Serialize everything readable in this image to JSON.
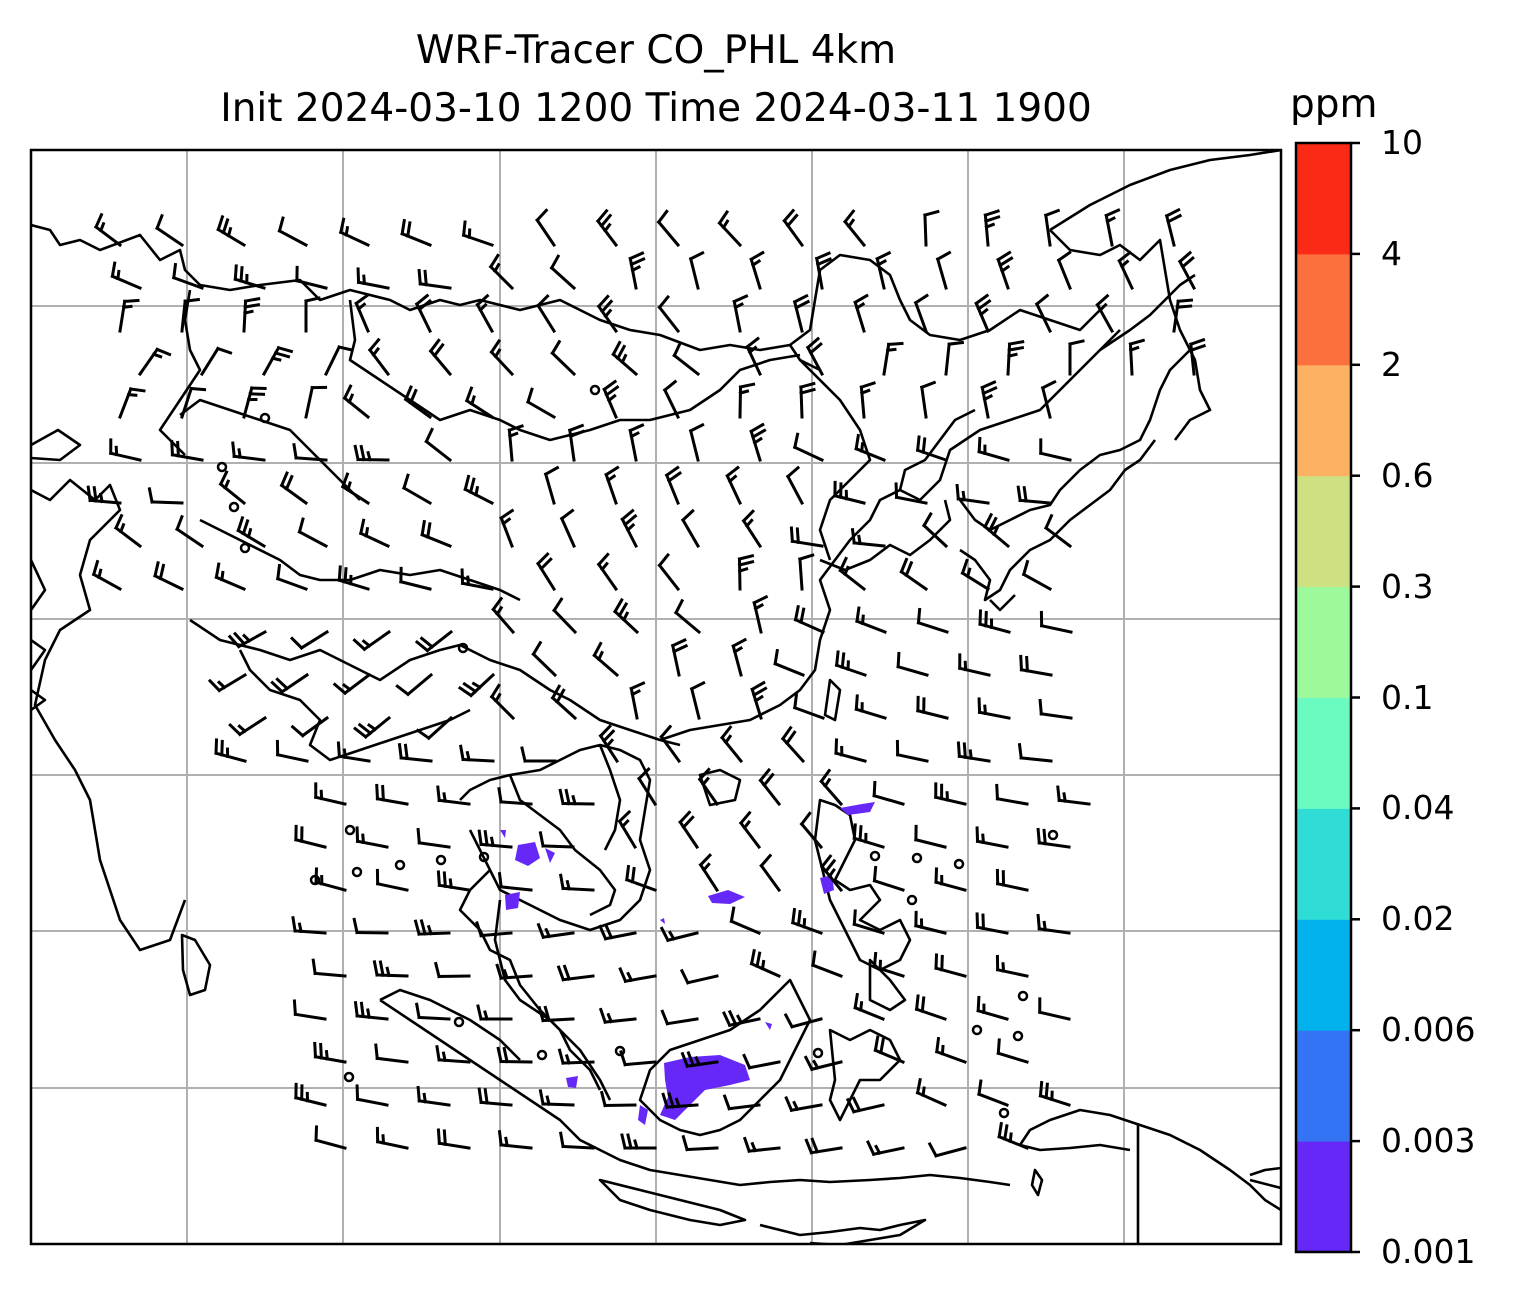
{
  "title": {
    "line1": "WRF-Tracer CO_PHL 4km",
    "line2": "Init 2024-03-10 1200 Time 2024-03-11 1900"
  },
  "colorbar": {
    "unit": "ppm",
    "levels": [
      "0.001",
      "0.003",
      "0.006",
      "0.02",
      "0.04",
      "0.1",
      "0.3",
      "0.6",
      "2",
      "4",
      "10"
    ],
    "colors": [
      "#6528f7",
      "#3474f4",
      "#02b2ec",
      "#2fdcd6",
      "#6bfbc0",
      "#9cfa9c",
      "#cde082",
      "#fcb163",
      "#fc703d",
      "#fa2a17"
    ]
  },
  "map": {
    "layers": [
      "coastlines",
      "country-borders",
      "gridlines",
      "wind-barbs",
      "co-tracer-fill"
    ],
    "gridline_color": "#b0b0b0",
    "coastline_color": "#000000"
  }
}
